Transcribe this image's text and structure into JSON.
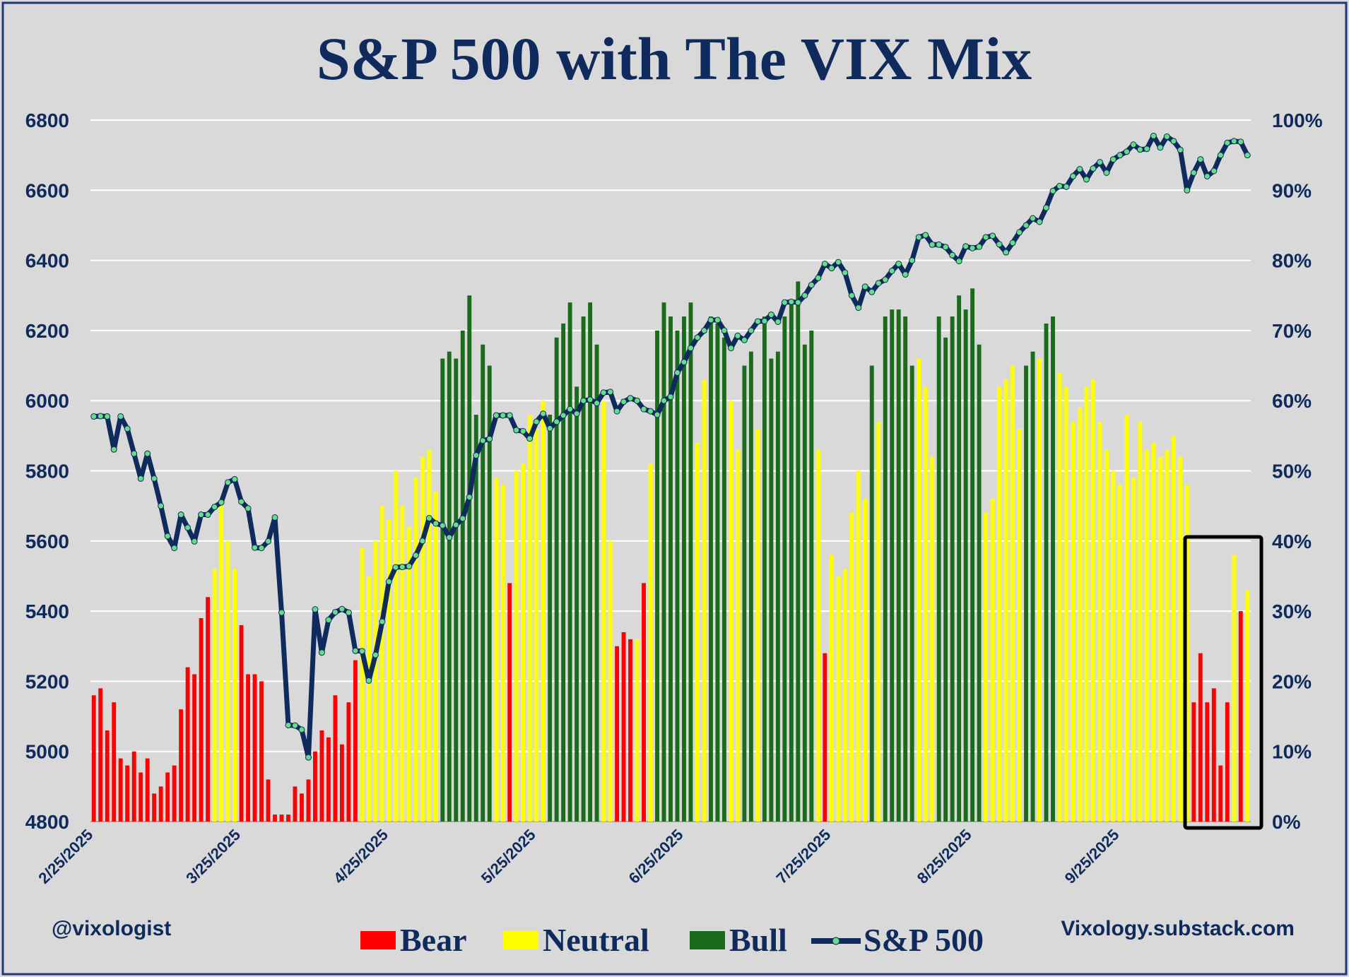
{
  "chart_data": {
    "type": "bar",
    "title": "S&P 500 with The VIX Mix",
    "xlabel": "",
    "ylabel": "",
    "y_left": {
      "min": 4800,
      "max": 6800,
      "ticks": [
        "6800",
        "6600",
        "6400",
        "6200",
        "6000",
        "5800",
        "5600",
        "5400",
        "5200",
        "5000",
        "4800"
      ]
    },
    "y_right": {
      "min": 0,
      "max": 100,
      "ticks": [
        "100%",
        "90%",
        "80%",
        "70%",
        "60%",
        "50%",
        "40%",
        "30%",
        "20%",
        "10%",
        "0%"
      ]
    },
    "x_ticks": [
      "2/25/2025",
      "3/25/2025",
      "4/25/2025",
      "5/25/2025",
      "6/25/2025",
      "7/25/2025",
      "8/25/2025",
      "9/25/2025"
    ],
    "grid": true,
    "legend_position": "bottom",
    "legend": [
      {
        "name": "Bear",
        "color": "#ff0000"
      },
      {
        "name": "Neutral",
        "color": "#ffff00"
      },
      {
        "name": "Bull",
        "color": "#1a6b1a"
      },
      {
        "name": "S&P 500",
        "color": "#0f2a5c"
      }
    ],
    "annotations": {
      "left": "@vixologist",
      "right": "Vixology.substack.com"
    },
    "colors": {
      "bear": "#ff0000",
      "neutral": "#ffff00",
      "bull": "#1a6b1a",
      "line": "#0f2a5c",
      "marker": "#66dd88",
      "title": "#0f2a5c",
      "plot_bg": "#d9d9d9"
    },
    "bars": [
      [
        "bear",
        18
      ],
      [
        "bear",
        19
      ],
      [
        "bear",
        13
      ],
      [
        "bear",
        17
      ],
      [
        "bear",
        9
      ],
      [
        "bear",
        8
      ],
      [
        "bear",
        10
      ],
      [
        "bear",
        7
      ],
      [
        "bear",
        9
      ],
      [
        "bear",
        4
      ],
      [
        "bear",
        5
      ],
      [
        "bear",
        7
      ],
      [
        "bear",
        8
      ],
      [
        "bear",
        16
      ],
      [
        "bear",
        22
      ],
      [
        "bear",
        21
      ],
      [
        "bear",
        29
      ],
      [
        "bear",
        32
      ],
      [
        "neutral",
        36
      ],
      [
        "neutral",
        45
      ],
      [
        "neutral",
        40
      ],
      [
        "neutral",
        36
      ],
      [
        "bear",
        28
      ],
      [
        "bear",
        21
      ],
      [
        "bear",
        21
      ],
      [
        "bear",
        20
      ],
      [
        "bear",
        6
      ],
      [
        "bear",
        1
      ],
      [
        "bear",
        1
      ],
      [
        "bear",
        1
      ],
      [
        "bear",
        5
      ],
      [
        "bear",
        4
      ],
      [
        "bear",
        6
      ],
      [
        "bear",
        10
      ],
      [
        "bear",
        13
      ],
      [
        "bear",
        12
      ],
      [
        "bear",
        18
      ],
      [
        "bear",
        11
      ],
      [
        "bear",
        17
      ],
      [
        "bear",
        23
      ],
      [
        "neutral",
        39
      ],
      [
        "neutral",
        35
      ],
      [
        "neutral",
        40
      ],
      [
        "neutral",
        45
      ],
      [
        "neutral",
        43
      ],
      [
        "neutral",
        50
      ],
      [
        "neutral",
        45
      ],
      [
        "neutral",
        42
      ],
      [
        "neutral",
        49
      ],
      [
        "neutral",
        52
      ],
      [
        "neutral",
        53
      ],
      [
        "neutral",
        47
      ],
      [
        "bull",
        66
      ],
      [
        "bull",
        67
      ],
      [
        "bull",
        66
      ],
      [
        "bull",
        70
      ],
      [
        "bull",
        75
      ],
      [
        "bull",
        58
      ],
      [
        "bull",
        68
      ],
      [
        "bull",
        65
      ],
      [
        "neutral",
        49
      ],
      [
        "neutral",
        48
      ],
      [
        "bear",
        34
      ],
      [
        "neutral",
        50
      ],
      [
        "neutral",
        51
      ],
      [
        "neutral",
        58
      ],
      [
        "neutral",
        56
      ],
      [
        "neutral",
        60
      ],
      [
        "bull",
        58
      ],
      [
        "bull",
        69
      ],
      [
        "bull",
        71
      ],
      [
        "bull",
        74
      ],
      [
        "bull",
        62
      ],
      [
        "bull",
        72
      ],
      [
        "bull",
        74
      ],
      [
        "bull",
        68
      ],
      [
        "neutral",
        60
      ],
      [
        "neutral",
        40
      ],
      [
        "bear",
        25
      ],
      [
        "bear",
        27
      ],
      [
        "bear",
        26
      ],
      [
        "neutral",
        26
      ],
      [
        "bear",
        34
      ],
      [
        "neutral",
        51
      ],
      [
        "bull",
        70
      ],
      [
        "bull",
        74
      ],
      [
        "bull",
        72
      ],
      [
        "bull",
        70
      ],
      [
        "bull",
        72
      ],
      [
        "bull",
        74
      ],
      [
        "neutral",
        54
      ],
      [
        "neutral",
        63
      ],
      [
        "bull",
        72
      ],
      [
        "bull",
        71
      ],
      [
        "bull",
        69
      ],
      [
        "neutral",
        60
      ],
      [
        "neutral",
        53
      ],
      [
        "bull",
        65
      ],
      [
        "bull",
        67
      ],
      [
        "neutral",
        56
      ],
      [
        "bull",
        72
      ],
      [
        "bull",
        66
      ],
      [
        "bull",
        67
      ],
      [
        "bull",
        72
      ],
      [
        "bull",
        74
      ],
      [
        "bull",
        77
      ],
      [
        "bull",
        68
      ],
      [
        "bull",
        70
      ],
      [
        "neutral",
        53
      ],
      [
        "bear",
        24
      ],
      [
        "neutral",
        38
      ],
      [
        "neutral",
        35
      ],
      [
        "neutral",
        36
      ],
      [
        "neutral",
        44
      ],
      [
        "neutral",
        50
      ],
      [
        "neutral",
        46
      ],
      [
        "bull",
        65
      ],
      [
        "neutral",
        57
      ],
      [
        "bull",
        72
      ],
      [
        "bull",
        73
      ],
      [
        "bull",
        73
      ],
      [
        "bull",
        72
      ],
      [
        "bull",
        65
      ],
      [
        "neutral",
        66
      ],
      [
        "neutral",
        62
      ],
      [
        "neutral",
        52
      ],
      [
        "bull",
        72
      ],
      [
        "bull",
        69
      ],
      [
        "bull",
        72
      ],
      [
        "bull",
        75
      ],
      [
        "bull",
        73
      ],
      [
        "bull",
        76
      ],
      [
        "bull",
        68
      ],
      [
        "neutral",
        44
      ],
      [
        "neutral",
        46
      ],
      [
        "neutral",
        62
      ],
      [
        "neutral",
        63
      ],
      [
        "neutral",
        65
      ],
      [
        "neutral",
        56
      ],
      [
        "bull",
        65
      ],
      [
        "bull",
        67
      ],
      [
        "neutral",
        66
      ],
      [
        "bull",
        71
      ],
      [
        "bull",
        72
      ],
      [
        "neutral",
        64
      ],
      [
        "neutral",
        62
      ],
      [
        "neutral",
        57
      ],
      [
        "neutral",
        59
      ],
      [
        "neutral",
        62
      ],
      [
        "neutral",
        63
      ],
      [
        "neutral",
        57
      ],
      [
        "neutral",
        53
      ],
      [
        "neutral",
        50
      ],
      [
        "neutral",
        48
      ],
      [
        "neutral",
        58
      ],
      [
        "neutral",
        49
      ],
      [
        "neutral",
        57
      ],
      [
        "neutral",
        53
      ],
      [
        "neutral",
        54
      ],
      [
        "neutral",
        52
      ],
      [
        "neutral",
        53
      ],
      [
        "neutral",
        55
      ],
      [
        "neutral",
        52
      ],
      [
        "neutral",
        48
      ],
      [
        "bear",
        17
      ],
      [
        "bear",
        24
      ],
      [
        "bear",
        17
      ],
      [
        "bear",
        19
      ],
      [
        "bear",
        8
      ],
      [
        "bear",
        17
      ],
      [
        "neutral",
        38
      ],
      [
        "bear",
        30
      ],
      [
        "neutral",
        33
      ]
    ],
    "sp500": [
      5955,
      5956,
      5955,
      5861,
      5955,
      5920,
      5849,
      5778,
      5849,
      5778,
      5700,
      5614,
      5580,
      5675,
      5638,
      5599,
      5675,
      5675,
      5697,
      5710,
      5767,
      5776,
      5712,
      5693,
      5581,
      5580,
      5599,
      5667,
      5396,
      5075,
      5074,
      5062,
      4983,
      5405,
      5282,
      5375,
      5397,
      5406,
      5396,
      5287,
      5286,
      5202,
      5275,
      5370,
      5484,
      5525,
      5526,
      5528,
      5559,
      5600,
      5665,
      5650,
      5644,
      5610,
      5646,
      5664,
      5725,
      5844,
      5886,
      5891,
      5958,
      5958,
      5958,
      5916,
      5913,
      5892,
      5940,
      5963,
      5921,
      5940,
      5958,
      5976,
      5963,
      6000,
      6003,
      5993,
      6023,
      6025,
      5970,
      5997,
      6007,
      6000,
      5976,
      5970,
      5960,
      6000,
      6011,
      6080,
      6110,
      6150,
      6180,
      6200,
      6230,
      6230,
      6200,
      6150,
      6185,
      6173,
      6200,
      6226,
      6227,
      6245,
      6225,
      6280,
      6282,
      6280,
      6300,
      6330,
      6350,
      6390,
      6378,
      6395,
      6365,
      6300,
      6265,
      6325,
      6310,
      6335,
      6345,
      6370,
      6390,
      6360,
      6400,
      6466,
      6472,
      6445,
      6445,
      6438,
      6415,
      6398,
      6440,
      6435,
      6439,
      6466,
      6470,
      6446,
      6423,
      6450,
      6480,
      6500,
      6520,
      6510,
      6550,
      6598,
      6612,
      6610,
      6640,
      6660,
      6631,
      6662,
      6680,
      6650,
      6688,
      6700,
      6710,
      6730,
      6716,
      6718,
      6755,
      6722,
      6753,
      6740,
      6715,
      6600,
      6650,
      6688,
      6640,
      6655,
      6700,
      6735,
      6740,
      6738,
      6700
    ]
  }
}
